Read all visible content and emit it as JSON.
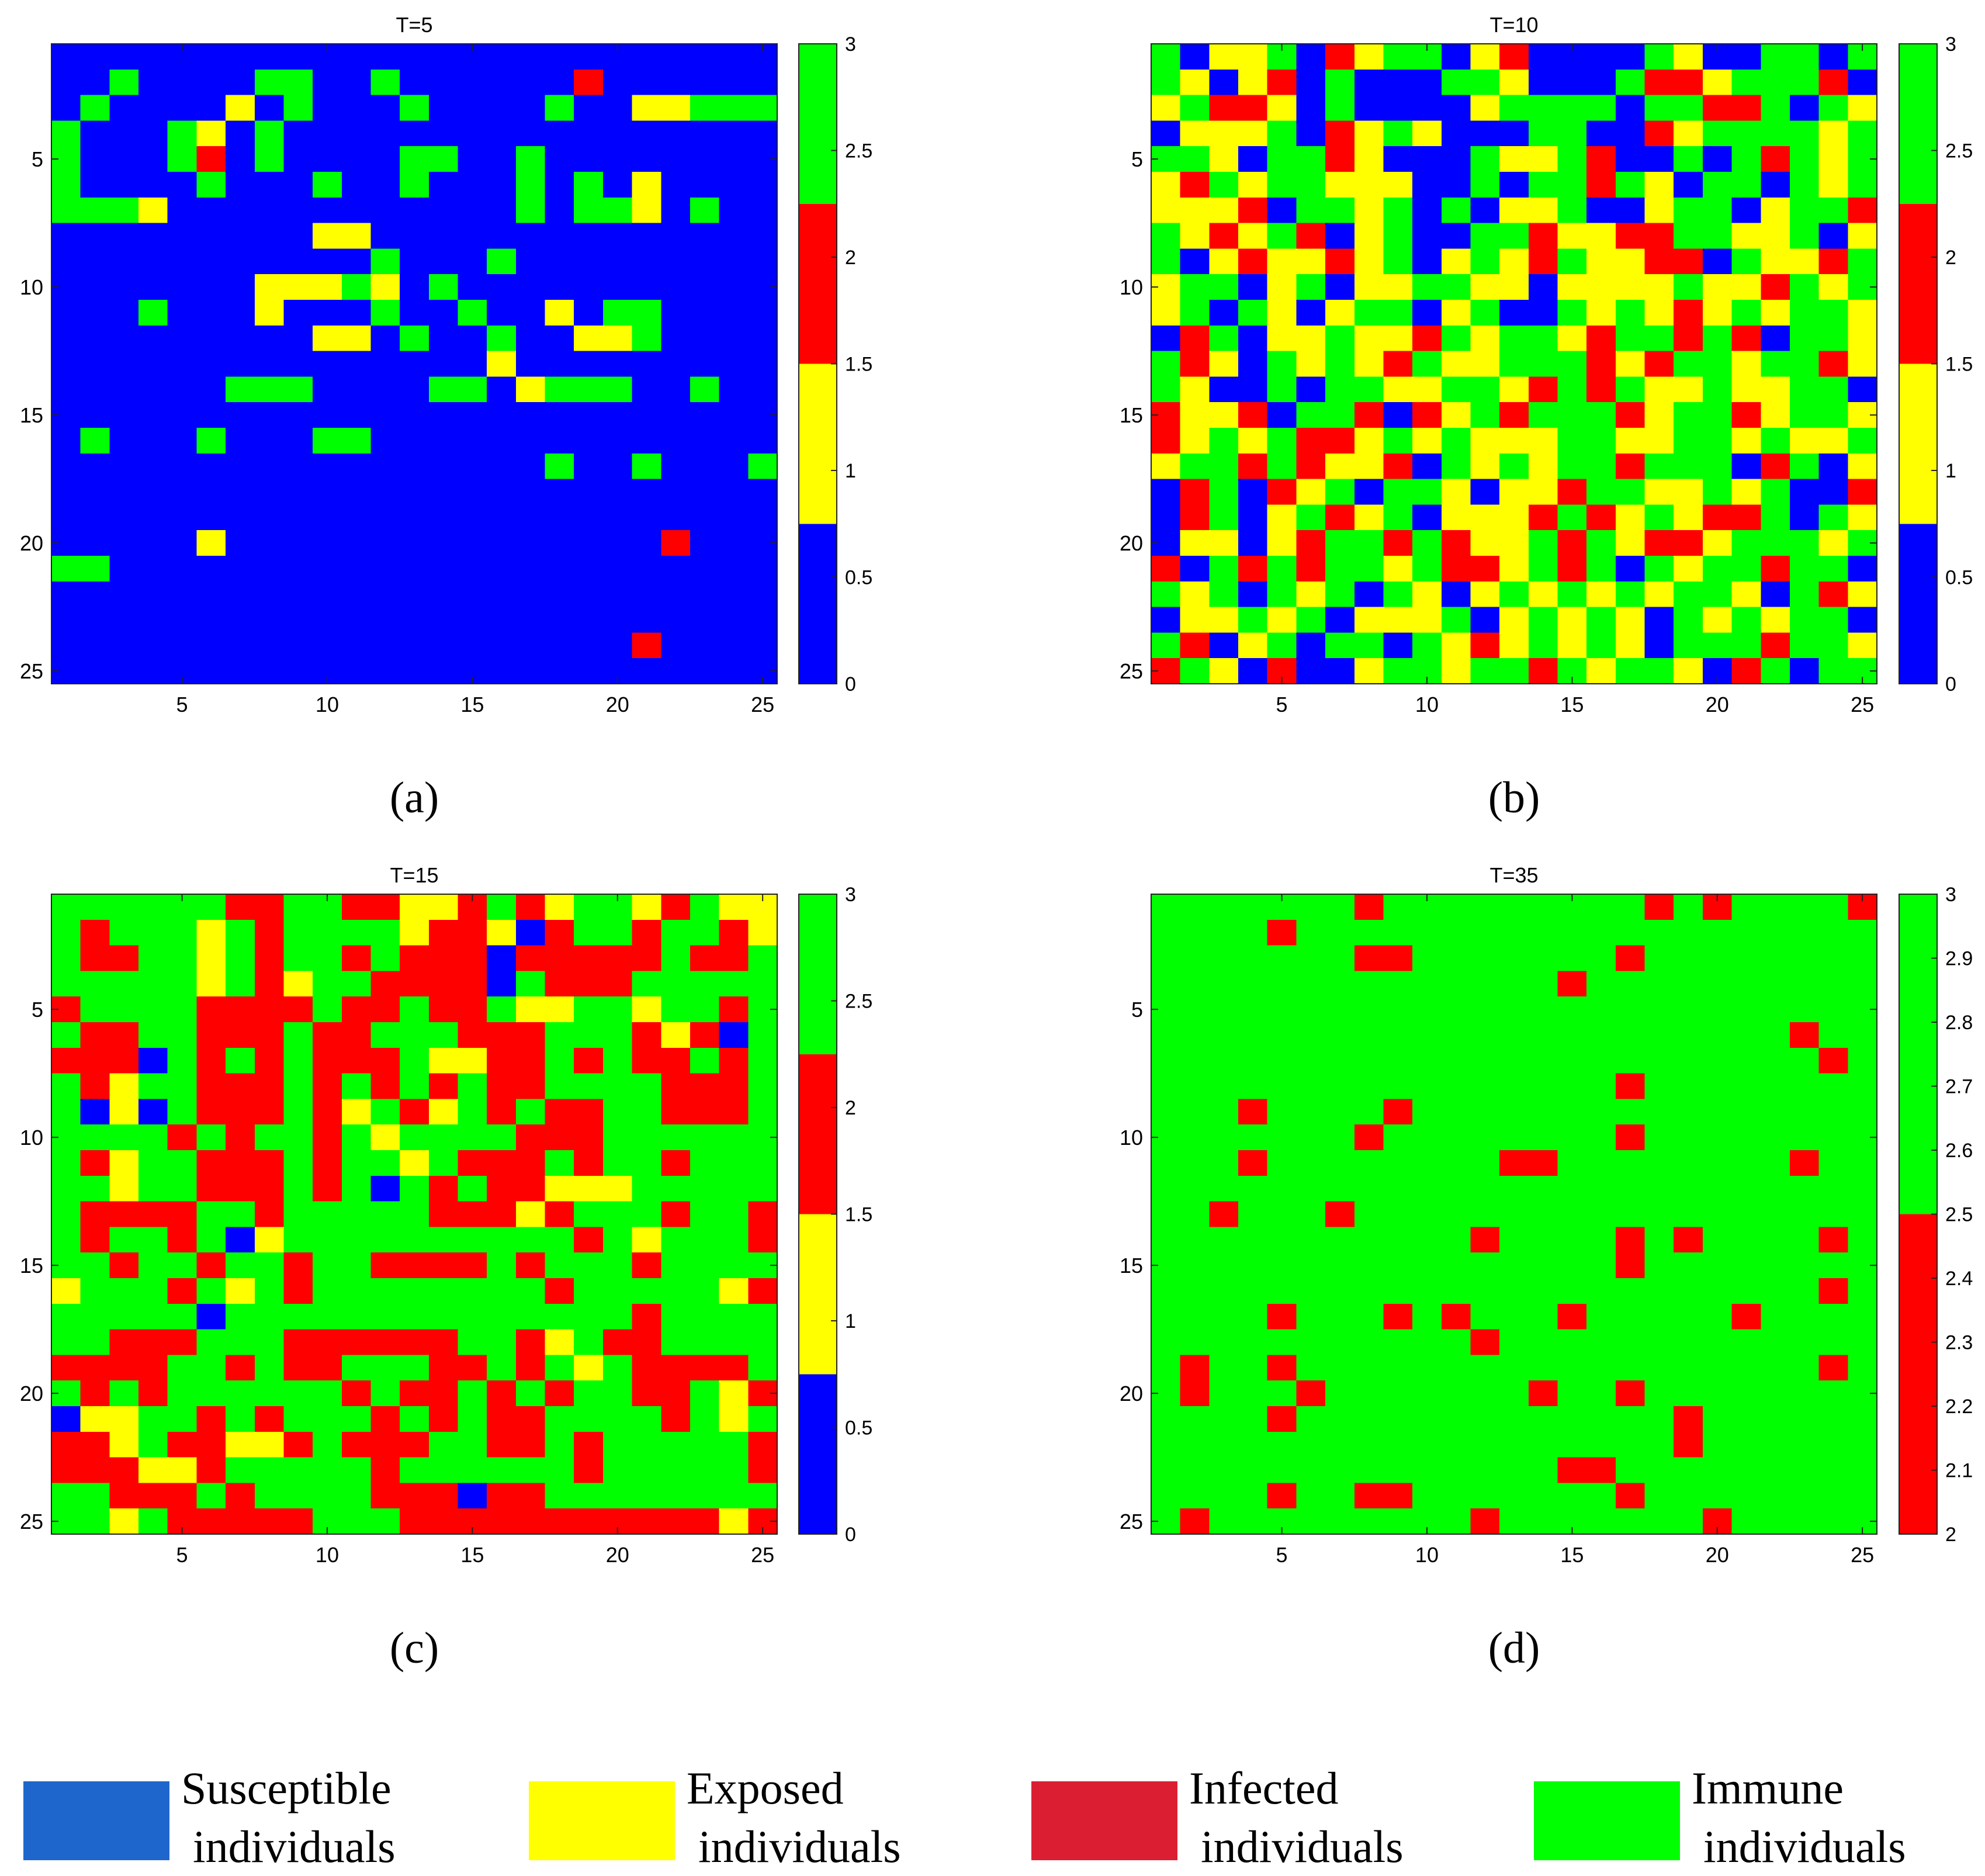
{
  "chart_data": [
    {
      "type": "heatmap",
      "panel": "(a)",
      "title": "T=5",
      "rows": 25,
      "cols": 25,
      "xticks": [
        5,
        10,
        15,
        20,
        25
      ],
      "yticks": [
        5,
        10,
        15,
        20,
        25
      ],
      "colorbar": {
        "min": 0,
        "max": 3,
        "ticks": [
          "0",
          "0.5",
          "1",
          "1.5",
          "2",
          "2.5",
          "3"
        ],
        "bands": [
          {
            "from": 0,
            "to": 0.75,
            "color": "#0000ff"
          },
          {
            "from": 0.75,
            "to": 1.5,
            "color": "#ffff00"
          },
          {
            "from": 1.5,
            "to": 2.25,
            "color": "#ff0000"
          },
          {
            "from": 2.25,
            "to": 3,
            "color": "#00ff00"
          }
        ]
      },
      "grid": [
        "0000000000000000000000000",
        "0030000330030000002000000",
        "0300001030003000030011333",
        "3000310300000000000000000",
        "3000320300003300300000000",
        "3000030003003000303010000",
        "3331000000000000303310300",
        "0000000001100000000000000",
        "0000000000030003000000000",
        "0000000111310300000000000",
        "0003000100030030010330000",
        "0000000001103003001130000",
        "0000000000000001000000000",
        "0000003330000330133300300",
        "0000000000000000000000000",
        "0300030003300000000000000",
        "0000000000000000030030003",
        "0000000000000000000000000",
        "0000000000000000000000000",
        "0000010000000000000002000",
        "3300000000000000000000000",
        "0000000000000000000000000",
        "0000000000000000000000000",
        "0000000000000000000020000",
        "0000000000000000000000000"
      ]
    },
    {
      "type": "heatmap",
      "panel": "(b)",
      "title": "T=10",
      "rows": 25,
      "cols": 25,
      "xticks": [
        5,
        10,
        15,
        20,
        25
      ],
      "yticks": [
        5,
        10,
        15,
        20,
        25
      ],
      "colorbar": {
        "min": 0,
        "max": 3,
        "ticks": [
          "0",
          "0.5",
          "1",
          "1.5",
          "2",
          "2.5",
          "3"
        ],
        "bands": [
          {
            "from": 0,
            "to": 0.75,
            "color": "#0000ff"
          },
          {
            "from": 0.75,
            "to": 1.5,
            "color": "#ffff00"
          },
          {
            "from": 1.5,
            "to": 2.25,
            "color": "#ff0000"
          },
          {
            "from": 2.25,
            "to": 3,
            "color": "#00ff00"
          }
        ]
      },
      "grid": [
        "3011302133012000031003303",
        "3101203000331000322133320",
        "1322103000013333033223031",
        "0111302131000330021333313",
        "3310332100031132003032313",
        "1231331110030332310330313",
        "1112033130301130013301332",
        "3121320130033211223311301",
        "3012112130131231122031123",
        "1330130113311011113112313",
        "1303101330130031312131331",
        "0230113112313312332320331",
        "3210313123113332123313321",
        "3100303311331232311311330",
        "2112033202132333213321331",
        "2131322131311133113313113",
        "1332321120313133233302301",
        "0230213033101123311313002",
        "0230132130111232131223031",
        "0110123323211323122133313",
        "2032323313221323031332330",
        "3130313031013131313310321",
        "0113130111301313103131330",
        "3201303303121313103332331",
        "2310200133133231331023033"
      ]
    },
    {
      "type": "heatmap",
      "panel": "(c)",
      "title": "T=15",
      "rows": 25,
      "cols": 25,
      "xticks": [
        5,
        10,
        15,
        20,
        25
      ],
      "yticks": [
        5,
        10,
        15,
        20,
        25
      ],
      "colorbar": {
        "min": 0,
        "max": 3,
        "ticks": [
          "0",
          "0.5",
          "1",
          "1.5",
          "2",
          "2.5",
          "3"
        ],
        "bands": [
          {
            "from": 0,
            "to": 0.75,
            "color": "#0000ff"
          },
          {
            "from": 0.75,
            "to": 1.5,
            "color": "#ffff00"
          },
          {
            "from": 1.5,
            "to": 2.25,
            "color": "#ff0000"
          },
          {
            "from": 2.25,
            "to": 3,
            "color": "#00ff00"
          }
        ]
      },
      "grid": [
        "3333332233221123213312311",
        "3233313233331221023323321",
        "3223313233232220222223223",
        "3333313213322220322233333",
        "2333322223223223113313323",
        "3223322232233322233321203",
        "2220323232223112232322323",
        "3213322232323232233332223",
        "3010322232132132322332223",
        "3333232332313333222333333",
        "3213322232331322232332333",
        "3313322232303232211133333",
        "3222233233333222123332332",
        "3233230133333333332313332",
        "3323323323322223233323333",
        "1333231323333333323333312",
        "3333303333333333333323333",
        "3322233322222233213223333",
        "2222332322333223231322223",
        "3232333333232232323322312",
        "0113323233323232233332313",
        "2213221123222332232333332",
        "2221123333323333332333332",
        "3322232333322202233333333",
        "3313222223332222222222212"
      ]
    },
    {
      "type": "heatmap",
      "panel": "(d)",
      "title": "T=35",
      "rows": 25,
      "cols": 25,
      "xticks": [
        5,
        10,
        15,
        20,
        25
      ],
      "yticks": [
        5,
        10,
        15,
        20,
        25
      ],
      "colorbar": {
        "min": 2,
        "max": 3,
        "ticks": [
          "2",
          "2.1",
          "2.2",
          "2.3",
          "2.4",
          "2.5",
          "2.6",
          "2.7",
          "2.8",
          "2.9",
          "3"
        ],
        "bands": [
          {
            "from": 2,
            "to": 2.5,
            "color": "#ff0000"
          },
          {
            "from": 2.5,
            "to": 3,
            "color": "#00ff00"
          }
        ]
      },
      "grid": [
        "3333333233333333323233332",
        "3333233333333333333333333",
        "3333333223333333233333333",
        "3333333333333323333333333",
        "3333333333333333333333333",
        "3333333333333333333333233",
        "3333333333333333333333323",
        "3333333333333333233333333",
        "3332333323333333333333333",
        "3333333233333333233333333",
        "3332333333332233333333233",
        "3333333333333333333333333",
        "3323332333333333333333333",
        "3333333333323333232333323",
        "3333333333333333233333333",
        "3333333333333333333333323",
        "3333233323233323333323333",
        "3333333333323333333333333",
        "3233233333333333333333323",
        "3233323333333233233333333",
        "3333233333333333332333333",
        "3333333333333333332333333",
        "3333333333333322333333333",
        "3333233223333333233333333",
        "3233333333323333333233333"
      ]
    }
  ],
  "panel_labels": [
    "(a)",
    "(b)",
    "(c)",
    "(d)"
  ],
  "legend": [
    {
      "line1": "Susceptible",
      "line2": "individuals",
      "color": "#1f66cc"
    },
    {
      "line1": "Exposed",
      "line2": "individuals",
      "color": "#ffff00"
    },
    {
      "line1": "Infected",
      "line2": "individuals",
      "color": "#dc1e32"
    },
    {
      "line1": "Immune",
      "line2": "individuals",
      "color": "#00ff00"
    }
  ],
  "palette": {
    "0": "#0000ff",
    "1": "#ffff00",
    "2": "#ff0000",
    "3": "#00ff00"
  }
}
